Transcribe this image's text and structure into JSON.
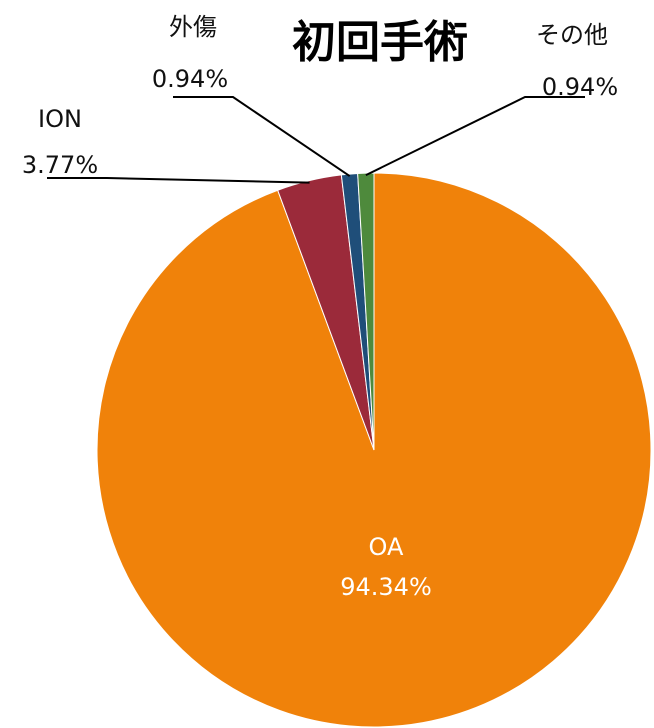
{
  "chart_data": {
    "type": "pie",
    "title": "初回手術",
    "categories": [
      "OA",
      "ION",
      "外傷",
      "その他"
    ],
    "values": [
      94.34,
      3.77,
      0.94,
      0.94
    ],
    "value_labels": [
      "94.34%",
      "3.77%",
      "0.94%",
      "0.94%"
    ],
    "colors": [
      "#f0820a",
      "#9b2a3a",
      "#1f4e79",
      "#4e8a3c"
    ]
  }
}
